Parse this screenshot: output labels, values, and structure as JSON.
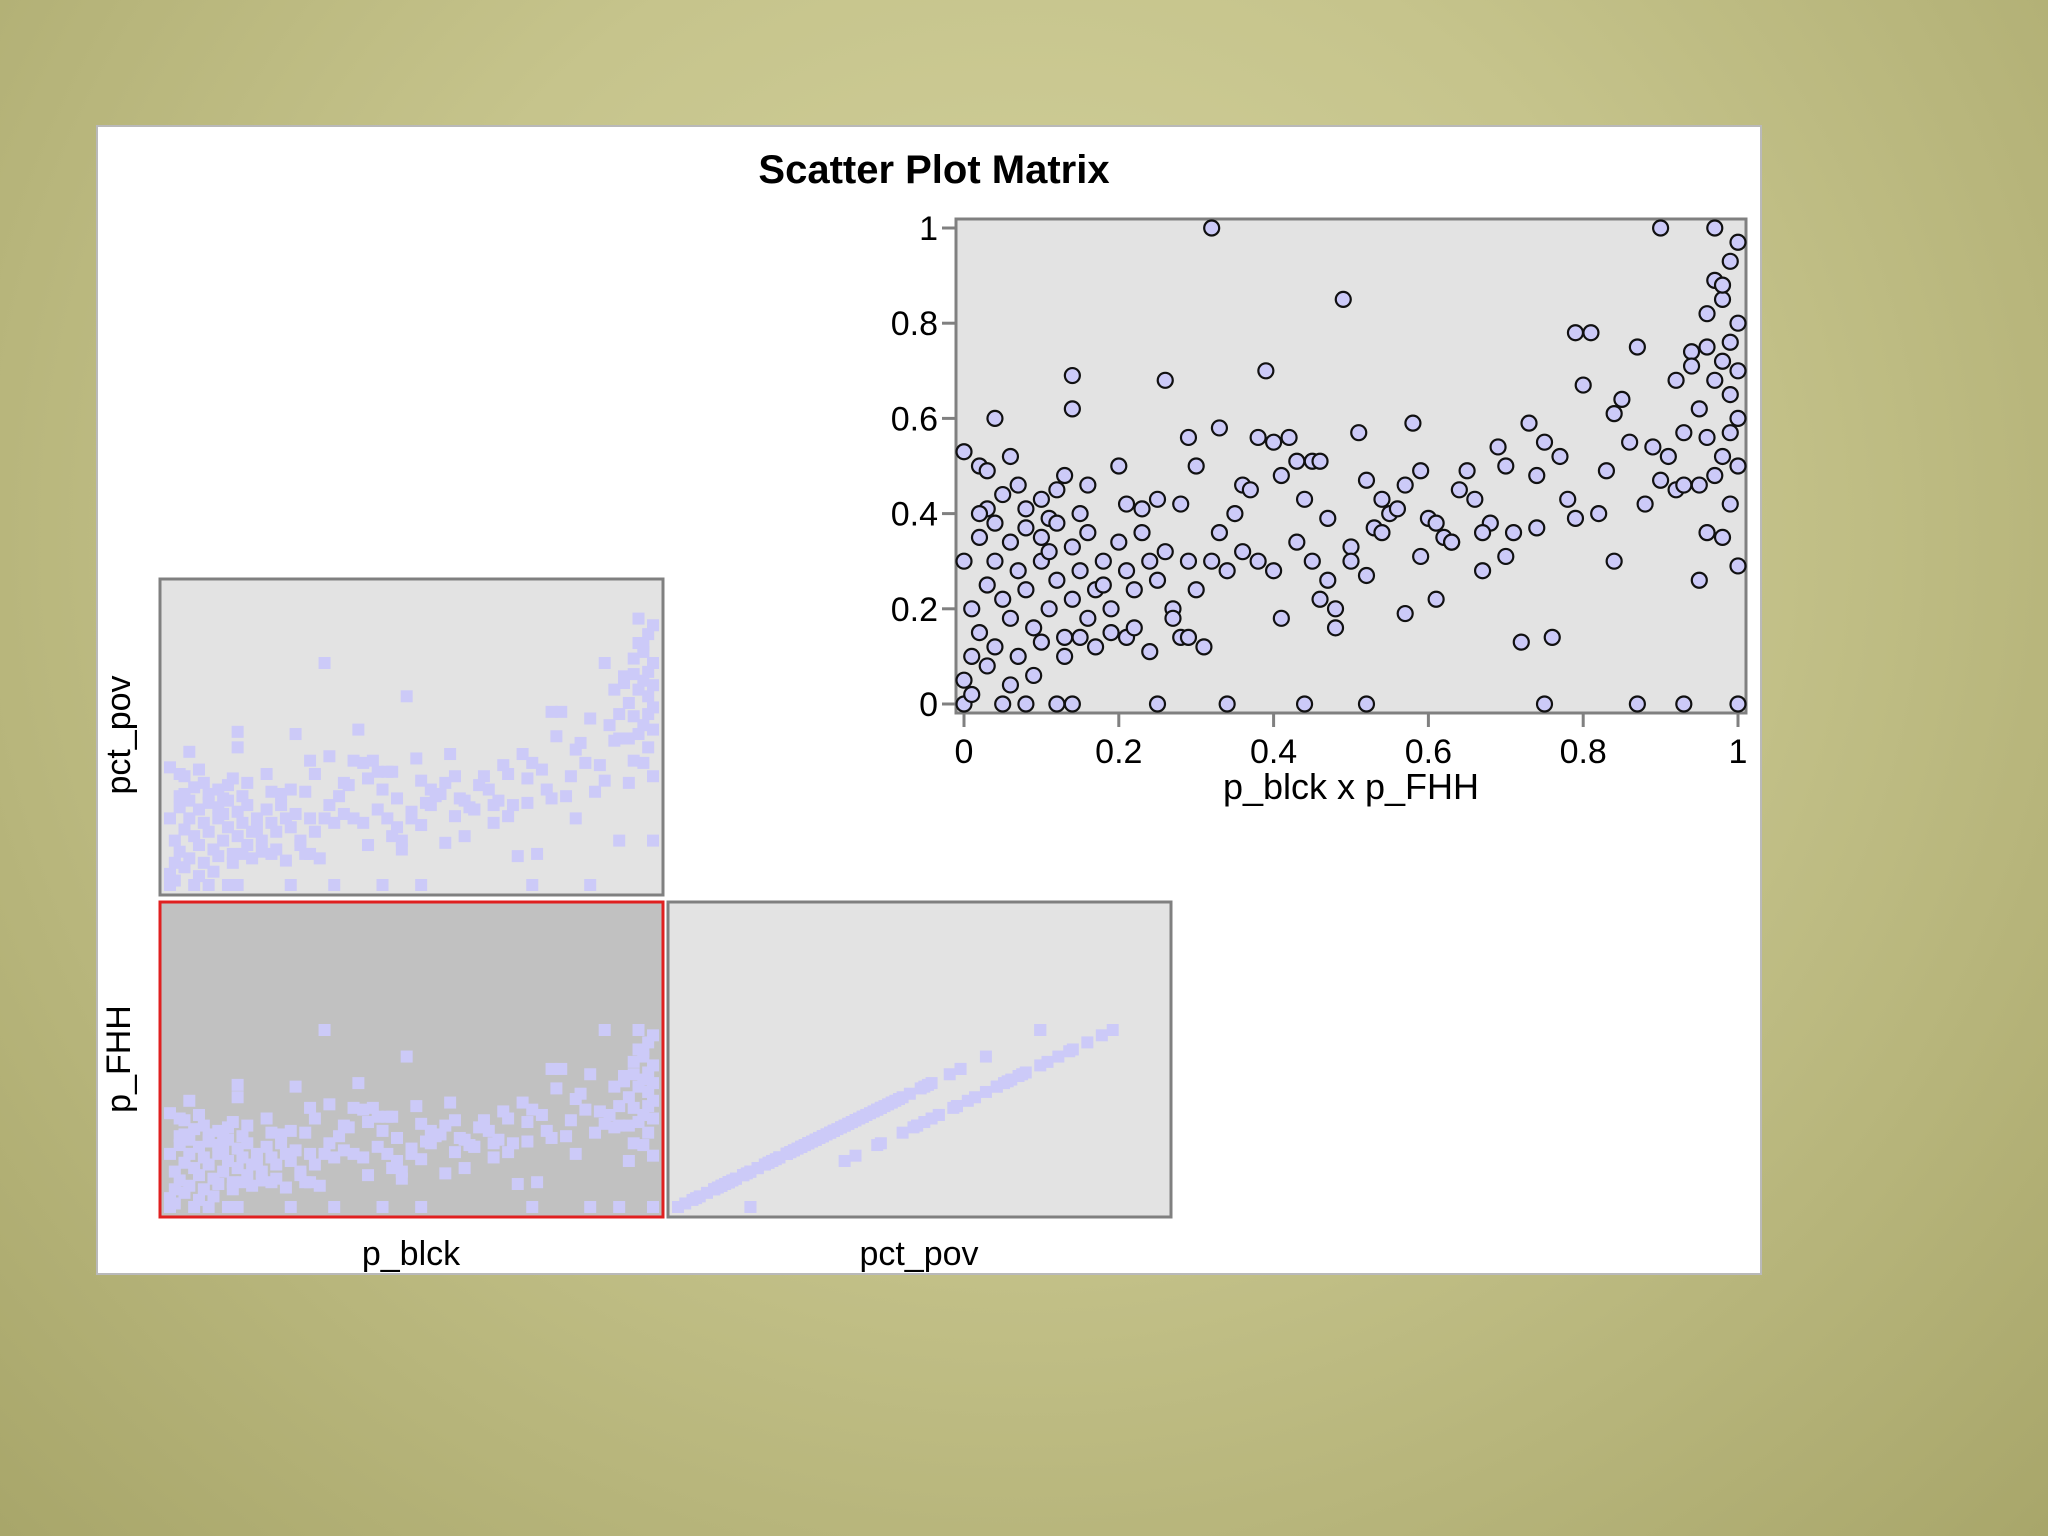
{
  "title": "Scatter Plot Matrix",
  "chart_data": [
    {
      "type": "scatter",
      "panel": "main",
      "title": "",
      "xlabel": "p_blck x p_FHH",
      "ylabel": "",
      "xlim": [
        0,
        1
      ],
      "ylim": [
        0,
        1
      ],
      "xticks": [
        "0",
        "0.2",
        "0.4",
        "0.6",
        "0.8",
        "1"
      ],
      "yticks": [
        "0",
        "0.2",
        "0.4",
        "0.6",
        "0.8",
        "1"
      ],
      "grid": false,
      "point_color": "#cccaf8",
      "points": [
        [
          0.0,
          0.53
        ],
        [
          0.02,
          0.5
        ],
        [
          0.03,
          0.49
        ],
        [
          0.04,
          0.6
        ],
        [
          0.06,
          0.52
        ],
        [
          0.03,
          0.41
        ],
        [
          0.05,
          0.44
        ],
        [
          0.07,
          0.46
        ],
        [
          0.08,
          0.41
        ],
        [
          0.1,
          0.43
        ],
        [
          0.11,
          0.39
        ],
        [
          0.12,
          0.45
        ],
        [
          0.13,
          0.48
        ],
        [
          0.14,
          0.69
        ],
        [
          0.14,
          0.62
        ],
        [
          0.15,
          0.4
        ],
        [
          0.16,
          0.46
        ],
        [
          0.2,
          0.5
        ],
        [
          0.21,
          0.42
        ],
        [
          0.23,
          0.41
        ],
        [
          0.25,
          0.43
        ],
        [
          0.26,
          0.68
        ],
        [
          0.28,
          0.42
        ],
        [
          0.29,
          0.56
        ],
        [
          0.3,
          0.5
        ],
        [
          0.32,
          1.0
        ],
        [
          0.33,
          0.58
        ],
        [
          0.35,
          0.4
        ],
        [
          0.36,
          0.46
        ],
        [
          0.37,
          0.45
        ],
        [
          0.38,
          0.56
        ],
        [
          0.39,
          0.7
        ],
        [
          0.4,
          0.55
        ],
        [
          0.41,
          0.48
        ],
        [
          0.42,
          0.56
        ],
        [
          0.43,
          0.51
        ],
        [
          0.44,
          0.43
        ],
        [
          0.45,
          0.51
        ],
        [
          0.46,
          0.51
        ],
        [
          0.47,
          0.39
        ],
        [
          0.48,
          0.2
        ],
        [
          0.49,
          0.85
        ],
        [
          0.5,
          0.33
        ],
        [
          0.51,
          0.57
        ],
        [
          0.52,
          0.47
        ],
        [
          0.53,
          0.37
        ],
        [
          0.54,
          0.43
        ],
        [
          0.55,
          0.4
        ],
        [
          0.56,
          0.41
        ],
        [
          0.57,
          0.46
        ],
        [
          0.58,
          0.59
        ],
        [
          0.59,
          0.49
        ],
        [
          0.6,
          0.39
        ],
        [
          0.61,
          0.22
        ],
        [
          0.62,
          0.35
        ],
        [
          0.63,
          0.34
        ],
        [
          0.64,
          0.45
        ],
        [
          0.65,
          0.49
        ],
        [
          0.66,
          0.43
        ],
        [
          0.67,
          0.28
        ],
        [
          0.68,
          0.38
        ],
        [
          0.69,
          0.54
        ],
        [
          0.7,
          0.5
        ],
        [
          0.71,
          0.36
        ],
        [
          0.72,
          0.13
        ],
        [
          0.73,
          0.59
        ],
        [
          0.74,
          0.48
        ],
        [
          0.75,
          0.55
        ],
        [
          0.76,
          0.14
        ],
        [
          0.77,
          0.52
        ],
        [
          0.78,
          0.43
        ],
        [
          0.79,
          0.78
        ],
        [
          0.8,
          0.67
        ],
        [
          0.81,
          0.78
        ],
        [
          0.82,
          0.4
        ],
        [
          0.83,
          0.49
        ],
        [
          0.84,
          0.61
        ],
        [
          0.85,
          0.64
        ],
        [
          0.86,
          0.55
        ],
        [
          0.87,
          0.75
        ],
        [
          0.88,
          0.42
        ],
        [
          0.89,
          0.54
        ],
        [
          0.9,
          0.47
        ],
        [
          0.91,
          0.52
        ],
        [
          0.92,
          0.45
        ],
        [
          0.93,
          0.46
        ],
        [
          0.94,
          0.74
        ],
        [
          0.95,
          0.62
        ],
        [
          0.96,
          0.82
        ],
        [
          0.97,
          0.89
        ],
        [
          0.98,
          0.85
        ],
        [
          0.99,
          0.93
        ],
        [
          1.0,
          0.97
        ],
        [
          0.95,
          0.46
        ],
        [
          0.96,
          0.56
        ],
        [
          0.97,
          0.68
        ],
        [
          0.98,
          0.72
        ],
        [
          0.99,
          0.76
        ],
        [
          1.0,
          0.7
        ],
        [
          0.98,
          0.52
        ],
        [
          1.0,
          0.6
        ],
        [
          0.99,
          0.65
        ],
        [
          1.0,
          0.8
        ],
        [
          0.98,
          0.88
        ],
        [
          0.96,
          0.36
        ],
        [
          0.98,
          0.35
        ],
        [
          1.0,
          0.29
        ],
        [
          0.95,
          0.26
        ],
        [
          0.97,
          0.48
        ],
        [
          0.93,
          0.57
        ],
        [
          0.92,
          0.68
        ],
        [
          0.9,
          1.0
        ],
        [
          0.97,
          1.0
        ],
        [
          0.99,
          0.42
        ],
        [
          1.0,
          0.5
        ],
        [
          0.99,
          0.57
        ],
        [
          0.96,
          0.75
        ],
        [
          0.94,
          0.71
        ],
        [
          0.05,
          0.0
        ],
        [
          0.08,
          0.0
        ],
        [
          0.12,
          0.0
        ],
        [
          0.14,
          0.0
        ],
        [
          0.25,
          0.0
        ],
        [
          0.34,
          0.0
        ],
        [
          0.44,
          0.0
        ],
        [
          0.52,
          0.0
        ],
        [
          0.75,
          0.0
        ],
        [
          0.87,
          0.0
        ],
        [
          0.93,
          0.0
        ],
        [
          1.0,
          0.0
        ],
        [
          0.0,
          0.05
        ],
        [
          0.01,
          0.1
        ],
        [
          0.02,
          0.15
        ],
        [
          0.01,
          0.2
        ],
        [
          0.03,
          0.25
        ],
        [
          0.0,
          0.3
        ],
        [
          0.02,
          0.35
        ],
        [
          0.04,
          0.3
        ],
        [
          0.05,
          0.22
        ],
        [
          0.06,
          0.18
        ],
        [
          0.07,
          0.28
        ],
        [
          0.08,
          0.24
        ],
        [
          0.09,
          0.16
        ],
        [
          0.1,
          0.3
        ],
        [
          0.11,
          0.2
        ],
        [
          0.12,
          0.26
        ],
        [
          0.13,
          0.14
        ],
        [
          0.14,
          0.22
        ],
        [
          0.15,
          0.28
        ],
        [
          0.16,
          0.18
        ],
        [
          0.17,
          0.24
        ],
        [
          0.18,
          0.3
        ],
        [
          0.19,
          0.2
        ],
        [
          0.2,
          0.34
        ],
        [
          0.21,
          0.28
        ],
        [
          0.22,
          0.24
        ],
        [
          0.23,
          0.36
        ],
        [
          0.24,
          0.3
        ],
        [
          0.25,
          0.26
        ],
        [
          0.26,
          0.32
        ],
        [
          0.27,
          0.2
        ],
        [
          0.28,
          0.14
        ],
        [
          0.29,
          0.3
        ],
        [
          0.3,
          0.24
        ],
        [
          0.31,
          0.12
        ],
        [
          0.32,
          0.3
        ],
        [
          0.33,
          0.36
        ],
        [
          0.34,
          0.28
        ],
        [
          0.36,
          0.32
        ],
        [
          0.38,
          0.3
        ],
        [
          0.4,
          0.28
        ],
        [
          0.41,
          0.18
        ],
        [
          0.43,
          0.34
        ],
        [
          0.45,
          0.3
        ],
        [
          0.46,
          0.22
        ],
        [
          0.47,
          0.26
        ],
        [
          0.48,
          0.16
        ],
        [
          0.5,
          0.3
        ],
        [
          0.52,
          0.27
        ],
        [
          0.54,
          0.36
        ],
        [
          0.57,
          0.19
        ],
        [
          0.59,
          0.31
        ],
        [
          0.61,
          0.38
        ],
        [
          0.63,
          0.34
        ],
        [
          0.67,
          0.36
        ],
        [
          0.7,
          0.31
        ],
        [
          0.74,
          0.37
        ],
        [
          0.79,
          0.39
        ],
        [
          0.84,
          0.3
        ],
        [
          0.0,
          0.0
        ],
        [
          0.01,
          0.02
        ],
        [
          0.03,
          0.08
        ],
        [
          0.04,
          0.12
        ],
        [
          0.06,
          0.04
        ],
        [
          0.07,
          0.1
        ],
        [
          0.09,
          0.06
        ],
        [
          0.1,
          0.13
        ],
        [
          0.02,
          0.4
        ],
        [
          0.04,
          0.38
        ],
        [
          0.06,
          0.34
        ],
        [
          0.08,
          0.37
        ],
        [
          0.1,
          0.35
        ],
        [
          0.11,
          0.32
        ],
        [
          0.12,
          0.38
        ],
        [
          0.14,
          0.33
        ],
        [
          0.16,
          0.36
        ],
        [
          0.18,
          0.25
        ],
        [
          0.13,
          0.1
        ],
        [
          0.15,
          0.14
        ],
        [
          0.17,
          0.12
        ],
        [
          0.19,
          0.15
        ],
        [
          0.21,
          0.14
        ],
        [
          0.22,
          0.16
        ],
        [
          0.24,
          0.11
        ],
        [
          0.27,
          0.18
        ],
        [
          0.29,
          0.14
        ]
      ]
    },
    {
      "type": "scatter",
      "panel": "matrix-cell",
      "xlabel": "p_blck",
      "ylabel": "pct_pov",
      "highlighted": false,
      "point_color": "#cccaf8"
    },
    {
      "type": "scatter",
      "panel": "matrix-cell",
      "xlabel": "p_blck",
      "ylabel": "p_FHH",
      "highlighted": true,
      "highlight_color": "#e02020",
      "point_color": "#cccaf8"
    },
    {
      "type": "scatter",
      "panel": "matrix-cell",
      "xlabel": "pct_pov",
      "ylabel": "p_FHH",
      "highlighted": false,
      "point_color": "#cccaf8"
    }
  ]
}
